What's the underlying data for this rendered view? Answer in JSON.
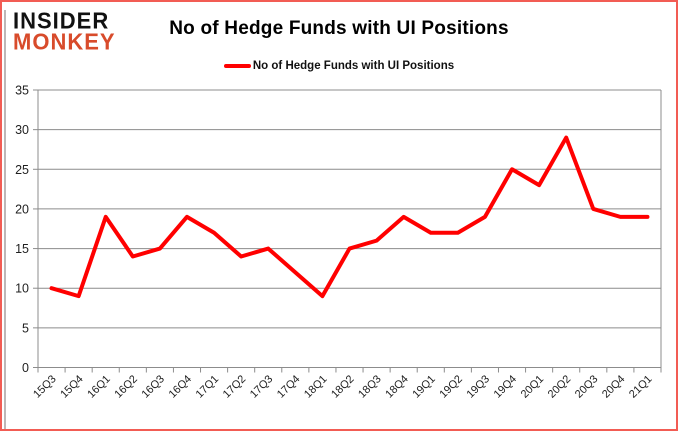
{
  "logo": {
    "line1": "INSIDER",
    "line2": "MONKEY"
  },
  "header": {
    "title": "No of Hedge Funds with UI Positions"
  },
  "legend": {
    "label": "No of Hedge Funds with UI Positions"
  },
  "colors": {
    "series_line": "#ff0000",
    "legend_marker": "#ff0000",
    "logo_red": "#d84b2b",
    "frame_border": "#f25c54",
    "grid_gray": "#8c8c8c",
    "axis_text": "#1f1f1f"
  },
  "chart_data": {
    "type": "line",
    "title": "No of Hedge Funds with UI Positions",
    "categories": [
      "15Q3",
      "15Q4",
      "16Q1",
      "16Q2",
      "16Q3",
      "16Q4",
      "17Q1",
      "17Q2",
      "17Q3",
      "17Q4",
      "18Q1",
      "18Q2",
      "18Q3",
      "18Q4",
      "19Q1",
      "19Q2",
      "19Q3",
      "19Q4",
      "20Q1",
      "20Q2",
      "20Q3",
      "20Q4",
      "21Q1"
    ],
    "series": [
      {
        "name": "No of Hedge Funds with UI Positions",
        "values": [
          10,
          9,
          19,
          14,
          15,
          19,
          17,
          14,
          15,
          12,
          9,
          15,
          16,
          19,
          17,
          17,
          19,
          25,
          23,
          29,
          20,
          19,
          19
        ]
      }
    ],
    "xlabel": "",
    "ylabel": "",
    "ylim": [
      0,
      35
    ],
    "ytick_step": 5,
    "grid": true,
    "legend_position": "top",
    "line_color": "#ff0000"
  }
}
